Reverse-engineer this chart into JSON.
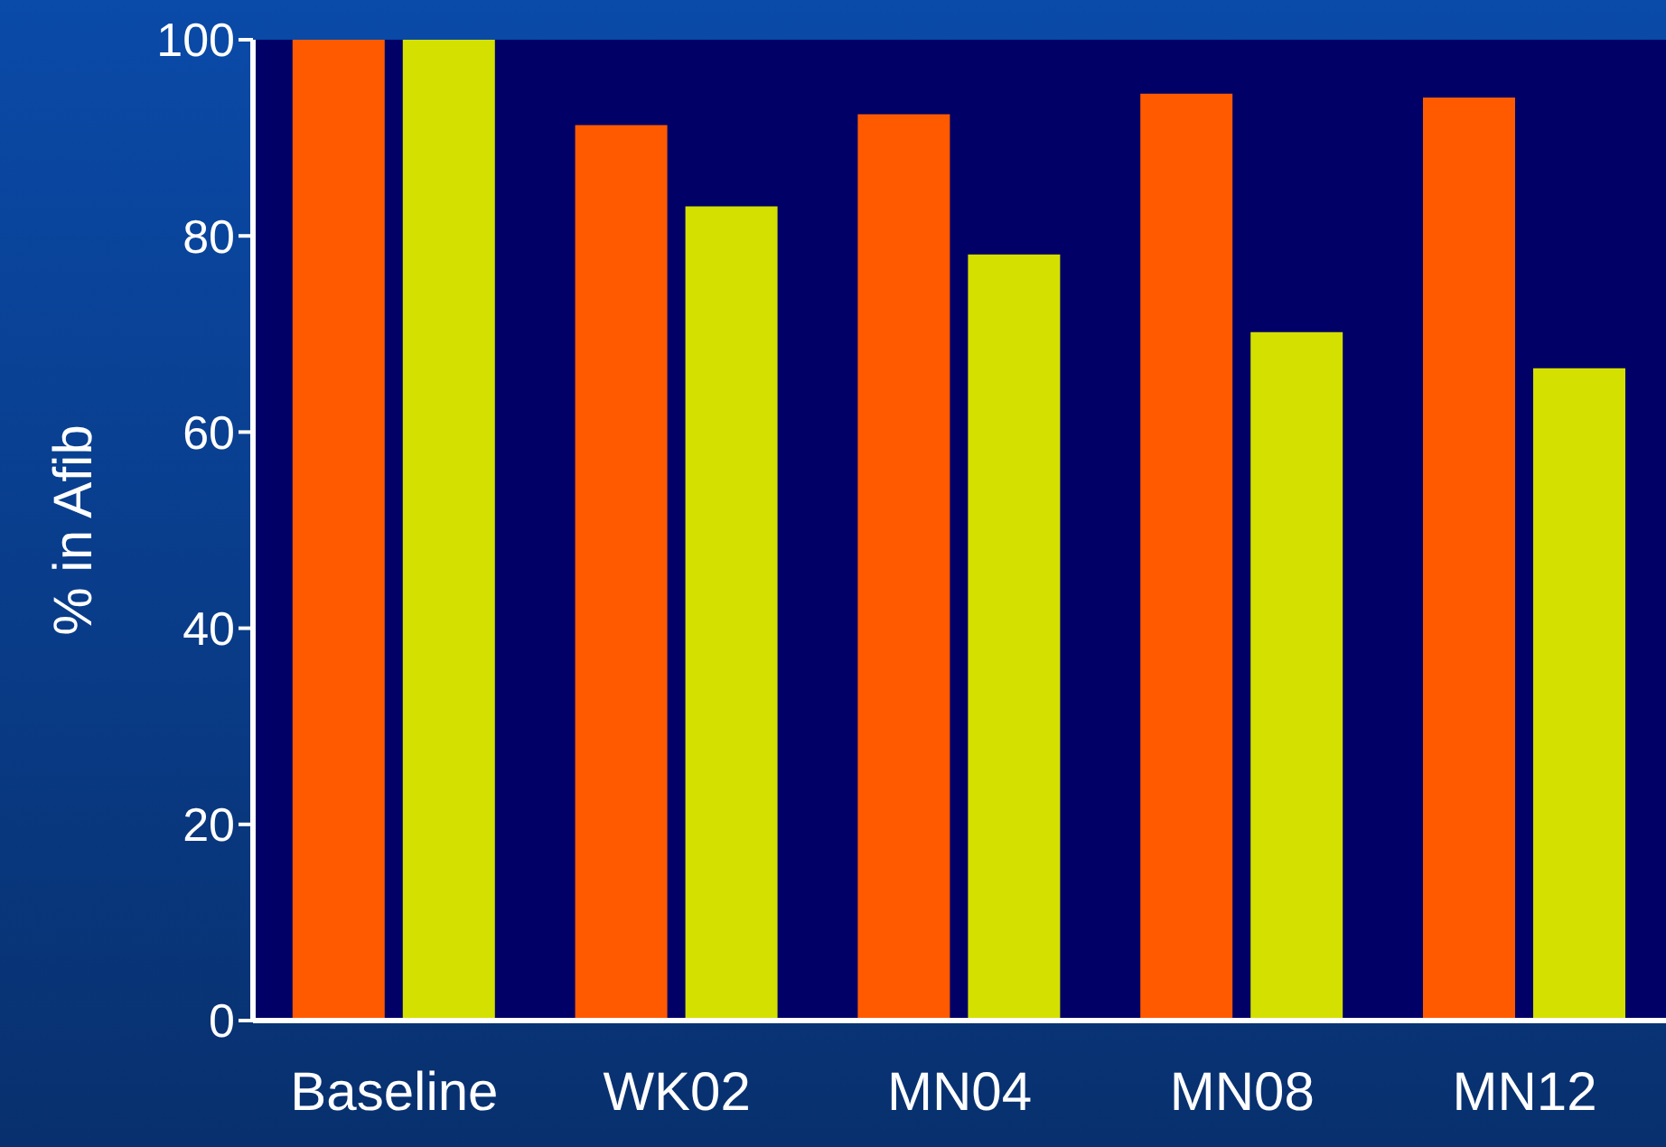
{
  "chart_data": {
    "type": "bar",
    "ylabel": "% in Afib",
    "categories": [
      "Baseline",
      "WK02",
      "MN04",
      "MN08",
      "MN12"
    ],
    "series": [
      {
        "color": "#ff5a00",
        "values": [
          100,
          91.3,
          92.4,
          94.5,
          94.1
        ]
      },
      {
        "color": "#d4e000",
        "values": [
          100,
          83,
          78.1,
          70.2,
          66.5
        ]
      }
    ],
    "ylim": [
      0,
      100
    ],
    "yticks": [
      0,
      20,
      40,
      60,
      80,
      100
    ],
    "grid": false,
    "legend": false
  }
}
